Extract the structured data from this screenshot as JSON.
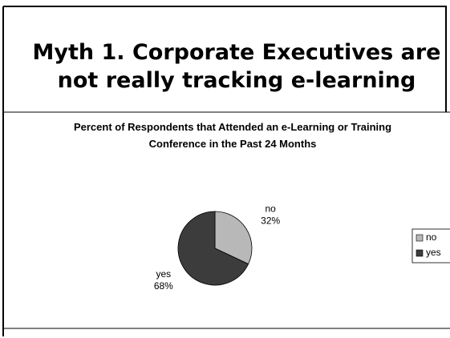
{
  "slide_title": "Myth 1. Corporate Executives are not really tracking e-learning",
  "chart_data": {
    "type": "pie",
    "title": "Percent of Respondents that Attended an e-Learning or Training Conference in the Past 24 Months",
    "categories": [
      "no",
      "yes"
    ],
    "values": [
      32,
      68
    ],
    "value_labels": [
      "32%",
      "68%"
    ],
    "colors": [
      "#b8b8b8",
      "#3c3c3c"
    ],
    "legend": "right"
  }
}
